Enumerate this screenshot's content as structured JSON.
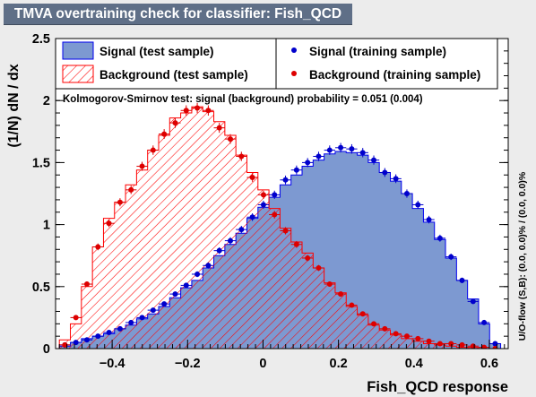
{
  "window": {
    "title": "TMVA overtraining check for classifier: Fish_QCD"
  },
  "colors": {
    "signal_fill": "#7d99d1",
    "signal_line": "#0000ee",
    "background_hatch": "#ff0000",
    "signal_dots": "#0000cc",
    "background_dots": "#dd0000",
    "title_bg": "#5f6f87"
  },
  "chart_data": {
    "type": "histogram",
    "title": "TMVA overtraining check for classifier: Fish_QCD",
    "xlabel": "Fish_QCD response",
    "ylabel": "(1/N) dN / dx",
    "xlim": [
      -0.55,
      0.65
    ],
    "ylim": [
      0,
      2.5
    ],
    "xticks": [
      -0.4,
      -0.2,
      0,
      0.2,
      0.4,
      0.6
    ],
    "xtick_labels": [
      "−0.4",
      "−0.2",
      "0",
      "0.2",
      "0.4",
      "0.6"
    ],
    "yticks": [
      0,
      0.5,
      1,
      1.5,
      2,
      2.5
    ],
    "ytick_labels": [
      "0",
      "0.5",
      "1",
      "1.5",
      "2",
      "2.5"
    ],
    "legend": {
      "signal_test": "Signal (test sample)",
      "background_test": "Background (test sample)",
      "signal_train": "Signal (training sample)",
      "background_train": "Background (training sample)"
    },
    "ks_text": "Kolmogorov-Smirnov test: signal (background) probability = 0.051 (0.004)",
    "overflow_text": "U/O-flow (S,B): (0.0, 0.0)% / (0.0, 0.0)%",
    "bin_edges_range": [
      -0.54,
      0.63
    ],
    "n_bins": 40,
    "signal_test_values": [
      0.02,
      0.05,
      0.08,
      0.1,
      0.12,
      0.16,
      0.19,
      0.24,
      0.28,
      0.34,
      0.41,
      0.49,
      0.55,
      0.65,
      0.75,
      0.84,
      0.93,
      1.05,
      1.14,
      1.22,
      1.32,
      1.4,
      1.47,
      1.52,
      1.57,
      1.59,
      1.58,
      1.56,
      1.5,
      1.42,
      1.35,
      1.25,
      1.13,
      1.02,
      0.88,
      0.73,
      0.55,
      0.4,
      0.2,
      0.04
    ],
    "background_test_values": [
      0.07,
      0.2,
      0.5,
      0.82,
      1.05,
      1.18,
      1.32,
      1.44,
      1.6,
      1.72,
      1.86,
      1.9,
      1.95,
      1.91,
      1.83,
      1.72,
      1.56,
      1.42,
      1.28,
      1.13,
      0.97,
      0.86,
      0.77,
      0.65,
      0.53,
      0.45,
      0.34,
      0.27,
      0.19,
      0.15,
      0.11,
      0.08,
      0.06,
      0.04,
      0.03,
      0.02,
      0.01,
      0.01,
      0.0,
      0.0
    ],
    "signal_train_values": [
      0.03,
      0.05,
      0.07,
      0.1,
      0.13,
      0.16,
      0.21,
      0.25,
      0.31,
      0.36,
      0.44,
      0.51,
      0.6,
      0.67,
      0.79,
      0.87,
      0.96,
      1.06,
      1.16,
      1.24,
      1.36,
      1.44,
      1.5,
      1.55,
      1.6,
      1.62,
      1.61,
      1.58,
      1.52,
      1.42,
      1.37,
      1.25,
      1.16,
      1.04,
      0.89,
      0.74,
      0.55,
      0.38,
      0.21,
      0.04
    ],
    "background_train_values": [
      0.03,
      0.25,
      0.52,
      0.82,
      1.01,
      1.18,
      1.28,
      1.47,
      1.6,
      1.73,
      1.82,
      1.92,
      1.94,
      1.92,
      1.78,
      1.69,
      1.55,
      1.38,
      1.24,
      1.08,
      0.95,
      0.84,
      0.73,
      0.65,
      0.52,
      0.44,
      0.35,
      0.28,
      0.2,
      0.16,
      0.12,
      0.1,
      0.08,
      0.06,
      0.04,
      0.04,
      0.03,
      0.02,
      0.01,
      0.0
    ]
  }
}
